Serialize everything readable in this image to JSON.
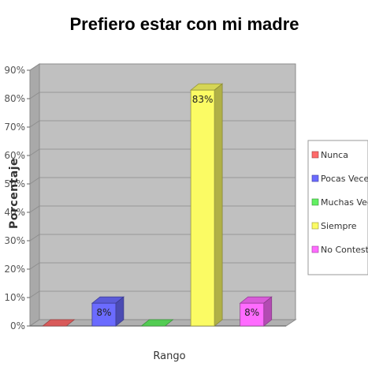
{
  "chart_data": {
    "type": "bar",
    "title": "Prefiero estar con mi madre",
    "xlabel": "Rango",
    "ylabel": "Porcentaje",
    "ylim": [
      0,
      90
    ],
    "yticks": [
      "0%",
      "10%",
      "20%",
      "30%",
      "40%",
      "50%",
      "60%",
      "70%",
      "80%",
      "90%"
    ],
    "grid": true,
    "legend_position": "right",
    "categories": [
      "Nunca",
      "Pocas Veces",
      "Muchas Veces",
      "Siempre",
      "No Contestó"
    ],
    "values": [
      0,
      8,
      0,
      83,
      8
    ],
    "data_labels": [
      "",
      "8%",
      "",
      "83%",
      "8%"
    ],
    "colors": [
      "#ff6a6a",
      "#6b6bff",
      "#62f062",
      "#fbfb64",
      "#ff6bff"
    ]
  },
  "legend": {
    "items": [
      {
        "label": "Nunca",
        "color": "#ff6a6a"
      },
      {
        "label": "Pocas Veces",
        "color": "#6b6bff"
      },
      {
        "label": "Muchas Veces",
        "color": "#62f062"
      },
      {
        "label": "Siempre",
        "color": "#fbfb64"
      },
      {
        "label": "No Contestó",
        "color": "#ff6bff"
      }
    ]
  }
}
